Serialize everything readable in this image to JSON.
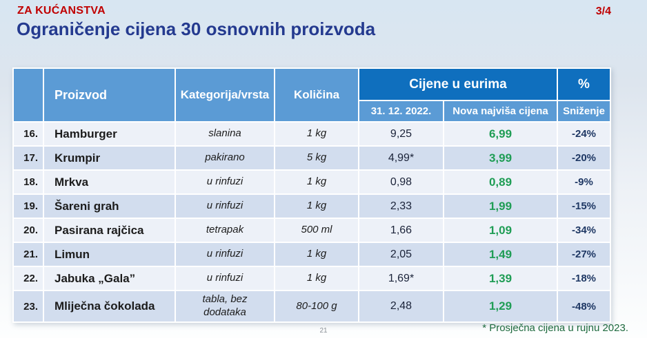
{
  "slide": {
    "eyebrow": "ZA KUĆANSTVA",
    "title": "Ograničenje cijena 30 osnovnih proizvoda",
    "page_indicator": "3/4",
    "footnote": "* Prosječna cijena u rujnu 2023.",
    "page_number": "21"
  },
  "table": {
    "headers": {
      "row_number": "",
      "proizvod": "Proizvod",
      "kategorija": "Kategorija/vrsta",
      "kolicina": "Količina",
      "cijene_group": "Cijene u eurima",
      "percent_group": "%",
      "old_price": "31. 12. 2022.",
      "new_price": "Nova najviša cijena",
      "snizenje": "Sniženje"
    },
    "rows": [
      {
        "num": "16.",
        "name": "Hamburger",
        "category": "slanina",
        "quantity": "1 kg",
        "old": "9,25",
        "new": "6,99",
        "discount": "-24%"
      },
      {
        "num": "17.",
        "name": "Krumpir",
        "category": "pakirano",
        "quantity": "5 kg",
        "old": "4,99*",
        "new": "3,99",
        "discount": "-20%"
      },
      {
        "num": "18.",
        "name": "Mrkva",
        "category": "u rinfuzi",
        "quantity": "1 kg",
        "old": "0,98",
        "new": "0,89",
        "discount": "-9%"
      },
      {
        "num": "19.",
        "name": "Šareni grah",
        "category": "u rinfuzi",
        "quantity": "1 kg",
        "old": "2,33",
        "new": "1,99",
        "discount": "-15%"
      },
      {
        "num": "20.",
        "name": "Pasirana rajčica",
        "category": "tetrapak",
        "quantity": "500 ml",
        "old": "1,66",
        "new": "1,09",
        "discount": "-34%"
      },
      {
        "num": "21.",
        "name": "Limun",
        "category": "u rinfuzi",
        "quantity": "1 kg",
        "old": "2,05",
        "new": "1,49",
        "discount": "-27%"
      },
      {
        "num": "22.",
        "name": "Jabuka „Gala”",
        "category": "u rinfuzi",
        "quantity": "1 kg",
        "old": "1,69*",
        "new": "1,39",
        "discount": "-18%"
      },
      {
        "num": "23.",
        "name": "Mliječna čokolada",
        "category": "tabla, bez dodataka",
        "quantity": "80-100 g",
        "old": "2,48",
        "new": "1,29",
        "discount": "-48%"
      }
    ]
  },
  "colors": {
    "header_blue": "#5b9bd5",
    "header_dark_blue": "#0f6fbe",
    "stripe_light": "#edf1f8",
    "stripe_dark": "#d2ddee",
    "price_green": "#1f9d55",
    "discount_navy": "#1f3864",
    "accent_red": "#c00000",
    "title_blue": "#243a8f",
    "footnote_green": "#1e6a3e",
    "page_gray": "#8a9096"
  }
}
